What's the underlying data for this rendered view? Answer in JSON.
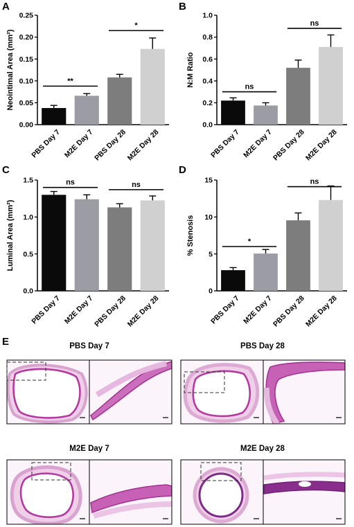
{
  "chart_data": [
    {
      "panel": "A",
      "type": "bar",
      "categories": [
        "PBS Day 7",
        "M2E Day 7",
        "PBS Day 28",
        "M2E Day 28"
      ],
      "values": [
        0.038,
        0.066,
        0.108,
        0.173
      ],
      "errors": [
        0.006,
        0.005,
        0.007,
        0.025
      ],
      "colors": [
        "#0a0a0a",
        "#9c9ca4",
        "#7d7d7d",
        "#d0d0d0"
      ],
      "ylabel": "Neointimal Area (mm²)",
      "ylim": [
        0,
        0.25
      ],
      "yticks": [
        "0.00",
        "0.05",
        "0.10",
        "0.15",
        "0.20",
        "0.25"
      ],
      "significance": [
        {
          "from": 0,
          "to": 1,
          "label": "**",
          "y": 0.088
        },
        {
          "from": 2,
          "to": 3,
          "label": "*",
          "y": 0.215
        }
      ]
    },
    {
      "panel": "B",
      "type": "bar",
      "categories": [
        "PBS Day 7",
        "M2E Day 7",
        "PBS Day 28",
        "M2E Day 28"
      ],
      "values": [
        0.22,
        0.175,
        0.52,
        0.71
      ],
      "errors": [
        0.025,
        0.025,
        0.07,
        0.11
      ],
      "colors": [
        "#0a0a0a",
        "#9c9ca4",
        "#7d7d7d",
        "#d0d0d0"
      ],
      "ylabel": "N:M Ratio",
      "ylim": [
        0,
        1.0
      ],
      "yticks": [
        "0.0",
        "0.2",
        "0.4",
        "0.6",
        "0.8",
        "1.0"
      ],
      "significance": [
        {
          "from": 0,
          "to": 1,
          "label": "ns",
          "y": 0.3
        },
        {
          "from": 2,
          "to": 3,
          "label": "ns",
          "y": 0.88
        }
      ]
    },
    {
      "panel": "C",
      "type": "bar",
      "categories": [
        "PBS Day 7",
        "M2E Day 7",
        "PBS Day 28",
        "M2E Day 28"
      ],
      "values": [
        1.3,
        1.24,
        1.13,
        1.225
      ],
      "errors": [
        0.045,
        0.06,
        0.05,
        0.06
      ],
      "colors": [
        "#0a0a0a",
        "#9c9ca4",
        "#7d7d7d",
        "#d0d0d0"
      ],
      "ylabel": "Luminal Area (mm²)",
      "ylim": [
        0,
        1.5
      ],
      "yticks": [
        "0.0",
        "0.5",
        "1.0",
        "1.5"
      ],
      "significance": [
        {
          "from": 0,
          "to": 1,
          "label": "ns",
          "y": 1.4
        },
        {
          "from": 2,
          "to": 3,
          "label": "ns",
          "y": 1.37
        }
      ]
    },
    {
      "panel": "D",
      "type": "bar",
      "categories": [
        "PBS Day 7",
        "M2E Day 7",
        "PBS Day 28",
        "M2E Day 28"
      ],
      "values": [
        2.8,
        5.05,
        9.55,
        12.3
      ],
      "errors": [
        0.35,
        0.55,
        1.0,
        1.9
      ],
      "colors": [
        "#0a0a0a",
        "#9c9ca4",
        "#7d7d7d",
        "#d0d0d0"
      ],
      "ylabel": "% Stenosis",
      "ylim": [
        0,
        15
      ],
      "yticks": [
        "0",
        "5",
        "10",
        "15"
      ],
      "significance": [
        {
          "from": 0,
          "to": 1,
          "label": "*",
          "y": 6.0
        },
        {
          "from": 2,
          "to": 3,
          "label": "ns",
          "y": 14.1
        }
      ]
    }
  ],
  "histology": {
    "panel": "E",
    "groups": [
      {
        "title": "PBS Day 7"
      },
      {
        "title": "PBS Day 28"
      },
      {
        "title": "M2E Day 7"
      },
      {
        "title": "M2E Day 28"
      }
    ],
    "stain_color": "#c24fae",
    "background_color": "#fbf4fa"
  }
}
